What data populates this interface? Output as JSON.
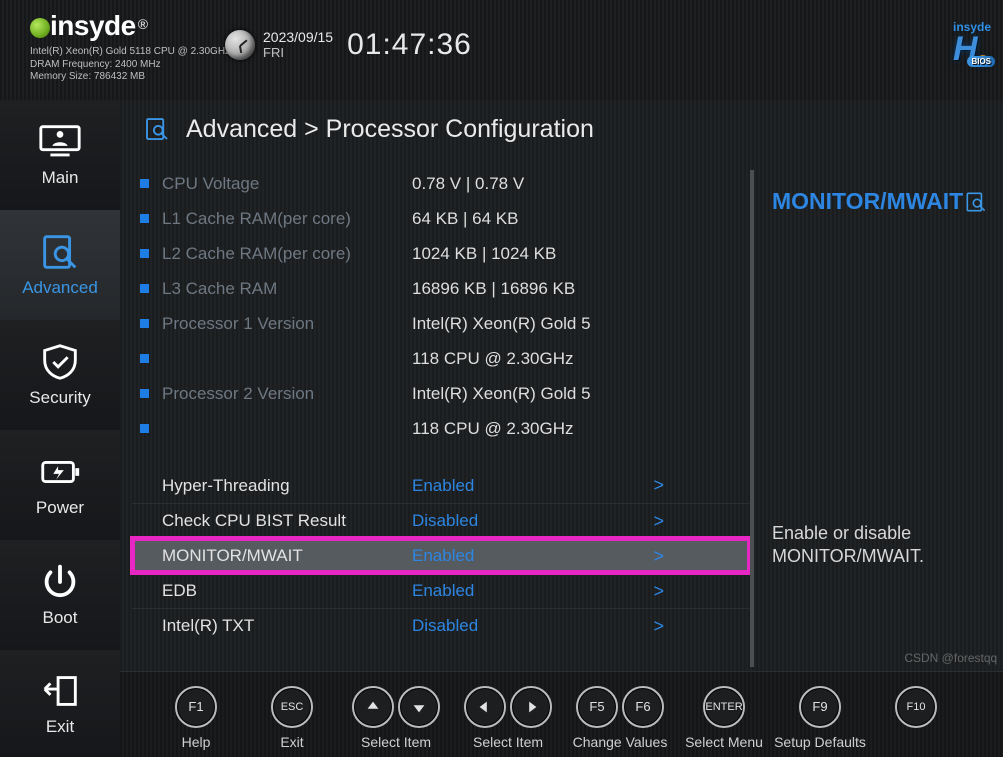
{
  "brand": "insyde",
  "sys": {
    "cpu": "Intel(R) Xeon(R) Gold 5118 CPU @ 2.30GHz",
    "dram": "DRAM Frequency: 2400 MHz",
    "mem": "Memory Size: 786432 MB"
  },
  "clock": {
    "date": "2023/09/15",
    "dow": "FRI",
    "time": "01:47:36"
  },
  "logo": {
    "top": "insyde",
    "main": "H",
    "sub": "2",
    "badge": "BIOS"
  },
  "sidebar": {
    "items": [
      {
        "label": "Main"
      },
      {
        "label": "Advanced"
      },
      {
        "label": "Security"
      },
      {
        "label": "Power"
      },
      {
        "label": "Boot"
      },
      {
        "label": "Exit"
      }
    ],
    "active_index": 1
  },
  "breadcrumb": "Advanced > Processor Configuration",
  "info_rows": [
    {
      "label": "CPU Voltage",
      "value": "0.78 V   |   0.78 V"
    },
    {
      "label": "L1 Cache RAM(per core)",
      "value": "    64 KB  |     64 KB"
    },
    {
      "label": "L2 Cache RAM(per core)",
      "value": " 1024 KB  |   1024 KB"
    },
    {
      "label": "L3 Cache RAM",
      "value": "16896 KB  |  16896 KB"
    },
    {
      "label": "Processor 1 Version",
      "value": "Intel(R) Xeon(R) Gold 5"
    },
    {
      "label": "",
      "value": "118 CPU @ 2.30GHz"
    },
    {
      "label": "Processor 2 Version",
      "value": "Intel(R) Xeon(R) Gold 5"
    },
    {
      "label": "",
      "value": "118 CPU @ 2.30GHz"
    }
  ],
  "options": [
    {
      "label": "Hyper-Threading",
      "value": "Enabled",
      "state": "enabled"
    },
    {
      "label": "Check CPU BIST Result",
      "value": "Disabled",
      "state": "disabled"
    },
    {
      "label": "MONITOR/MWAIT",
      "value": "Enabled",
      "state": "enabled",
      "selected": true,
      "highlight": true
    },
    {
      "label": "EDB",
      "value": "Enabled",
      "state": "enabled"
    },
    {
      "label": "Intel(R) TXT",
      "value": "Disabled",
      "state": "disabled"
    }
  ],
  "help": {
    "title": "MONITOR/MWAIT",
    "desc": "Enable or disable MONITOR/MWAIT."
  },
  "footer": [
    {
      "keys": [
        "F1"
      ],
      "label": "Help"
    },
    {
      "keys": [
        "ESC"
      ],
      "label": "Exit"
    },
    {
      "keys": [
        "↑",
        "↓"
      ],
      "label": "Select Item",
      "arrows": "ud"
    },
    {
      "keys": [
        "←",
        "→"
      ],
      "label": "Select Item",
      "arrows": "lr"
    },
    {
      "keys": [
        "F5",
        "F6"
      ],
      "label": "Change Values"
    },
    {
      "keys": [
        "ENTER"
      ],
      "label": "Select Menu"
    },
    {
      "keys": [
        "F9"
      ],
      "label": "Setup Defaults"
    },
    {
      "keys": [
        "F10"
      ],
      "label": ""
    }
  ],
  "colors": {
    "accent": "#2d86e2",
    "highlight_border": "#e826c4",
    "selected_bg": "#565b60",
    "muted_text": "#6e7882",
    "text": "#d8d8d8",
    "bg": "#1d2022"
  },
  "watermark": "CSDN @forestqq"
}
